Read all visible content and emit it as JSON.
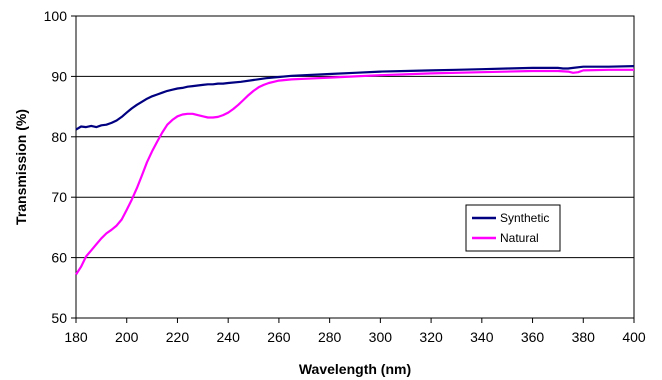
{
  "chart_data": {
    "type": "line",
    "title": "",
    "xlabel": "Wavelength (nm)",
    "ylabel": "Transmission (%)",
    "xlim": [
      180,
      400
    ],
    "ylim": [
      50,
      100
    ],
    "x_ticks": [
      180,
      200,
      220,
      240,
      260,
      280,
      300,
      320,
      340,
      360,
      380,
      400
    ],
    "y_ticks": [
      50,
      60,
      70,
      80,
      90,
      100
    ],
    "grid": "horizontal",
    "legend_position": "right-center",
    "series": [
      {
        "name": "Synthetic",
        "color": "#000080",
        "x": [
          180,
          182,
          184,
          186,
          188,
          190,
          192,
          194,
          196,
          198,
          200,
          202,
          204,
          206,
          208,
          210,
          212,
          214,
          216,
          218,
          220,
          222,
          224,
          226,
          228,
          230,
          232,
          234,
          236,
          238,
          240,
          245,
          250,
          255,
          260,
          265,
          270,
          275,
          280,
          290,
          300,
          310,
          320,
          330,
          340,
          350,
          360,
          370,
          372,
          374,
          376,
          380,
          390,
          400
        ],
        "y": [
          81.2,
          81.7,
          81.6,
          81.8,
          81.6,
          81.9,
          82.0,
          82.3,
          82.7,
          83.3,
          84.0,
          84.7,
          85.3,
          85.8,
          86.3,
          86.7,
          87.0,
          87.3,
          87.6,
          87.8,
          88.0,
          88.1,
          88.3,
          88.4,
          88.5,
          88.6,
          88.7,
          88.7,
          88.8,
          88.8,
          88.9,
          89.1,
          89.4,
          89.7,
          89.9,
          90.1,
          90.2,
          90.3,
          90.4,
          90.6,
          90.8,
          90.9,
          91.0,
          91.1,
          91.2,
          91.3,
          91.4,
          91.4,
          91.3,
          91.3,
          91.4,
          91.6,
          91.6,
          91.7
        ]
      },
      {
        "name": "Natural",
        "color": "#FF00FF",
        "x": [
          180,
          182,
          184,
          186,
          188,
          190,
          192,
          194,
          196,
          198,
          200,
          202,
          204,
          206,
          208,
          210,
          212,
          214,
          216,
          218,
          220,
          222,
          224,
          226,
          228,
          230,
          232,
          234,
          236,
          238,
          240,
          242,
          244,
          246,
          248,
          250,
          252,
          254,
          256,
          258,
          260,
          265,
          270,
          280,
          290,
          300,
          320,
          340,
          360,
          370,
          374,
          376,
          378,
          380,
          390,
          400
        ],
        "y": [
          57.2,
          58.5,
          60.2,
          61.2,
          62.2,
          63.2,
          64.0,
          64.6,
          65.3,
          66.3,
          67.9,
          69.6,
          71.5,
          73.6,
          75.8,
          77.6,
          79.2,
          80.7,
          82.0,
          82.8,
          83.4,
          83.7,
          83.8,
          83.8,
          83.6,
          83.4,
          83.2,
          83.2,
          83.3,
          83.6,
          84.0,
          84.6,
          85.3,
          86.1,
          86.9,
          87.6,
          88.2,
          88.6,
          88.9,
          89.1,
          89.3,
          89.5,
          89.6,
          89.8,
          90.0,
          90.2,
          90.5,
          90.7,
          90.9,
          90.9,
          90.8,
          90.6,
          90.7,
          91.0,
          91.1,
          91.1
        ]
      }
    ]
  }
}
